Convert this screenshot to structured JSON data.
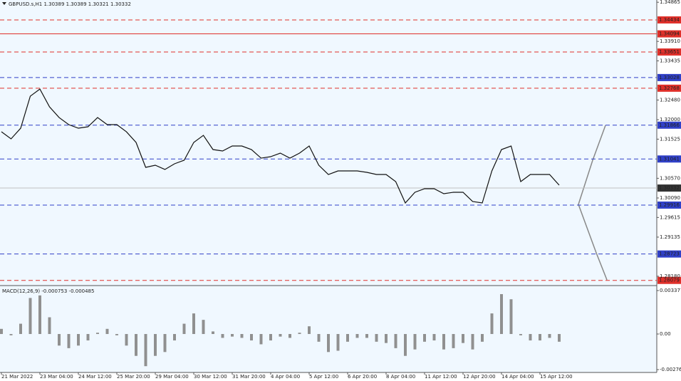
{
  "chart_data": [
    {
      "type": "line",
      "title": "GBPUSD.s,H1  1.30389 1.30389 1.30321 1.30332",
      "categories": [
        "21 Mar 2022",
        null,
        null,
        null,
        "23 Mar 04:00",
        null,
        null,
        null,
        "24 Mar 12:00",
        null,
        null,
        null,
        "25 Mar 20:00",
        null,
        null,
        null,
        "29 Mar 04:00",
        null,
        null,
        null,
        "30 Mar 12:00",
        null,
        null,
        null,
        "31 Mar 20:00",
        null,
        null,
        null,
        "4 Apr 04:00",
        null,
        null,
        null,
        "5 Apr 12:00",
        null,
        null,
        null,
        "6 Apr 20:00",
        null,
        null,
        null,
        "8 Apr 04:00",
        null,
        null,
        null,
        "11 Apr 12:00",
        null,
        null,
        null,
        "12 Apr 20:00",
        null,
        null,
        null,
        "14 Apr 04:00",
        null,
        null,
        null,
        "15 Apr 12:00",
        null,
        null
      ],
      "values": [
        1.31705,
        1.31532,
        1.31792,
        1.32573,
        1.32747,
        1.32313,
        1.32052,
        1.31879,
        1.31792,
        1.31827,
        1.32052,
        1.31879,
        1.31879,
        1.31705,
        1.31445,
        1.30837,
        1.30889,
        1.30785,
        1.30924,
        1.31011,
        1.31445,
        1.31618,
        1.31271,
        1.31236,
        1.31358,
        1.31358,
        1.31271,
        1.31062,
        1.31097,
        1.31184,
        1.31062,
        1.31184,
        1.31358,
        1.30889,
        1.30663,
        1.3075,
        1.3075,
        1.3075,
        1.30715,
        1.30663,
        1.30663,
        1.30489,
        1.29968,
        1.30229,
        1.30316,
        1.30316,
        1.30194,
        1.30229,
        1.30229,
        1.30003,
        1.29968,
        1.3075,
        1.31271,
        1.31358,
        1.30489,
        1.30663,
        1.30663,
        1.30663,
        1.30402
      ],
      "color": "#111111",
      "ylim": [
        1.2797,
        1.3492
      ],
      "yticks": [
        {
          "value": 1.34865,
          "label": "1.34865"
        },
        {
          "value": 1.3391,
          "label": "1.33910"
        },
        {
          "value": 1.33435,
          "label": "1.33435"
        },
        {
          "value": 1.3248,
          "label": "1.32480"
        },
        {
          "value": 1.32,
          "label": "1.32000"
        },
        {
          "value": 1.31525,
          "label": "1.31525"
        },
        {
          "value": 1.3057,
          "label": "1.30570"
        },
        {
          "value": 1.3009,
          "label": "1.30090"
        },
        {
          "value": 1.29615,
          "label": "1.29615"
        },
        {
          "value": 1.29135,
          "label": "1.29135"
        },
        {
          "value": 1.2818,
          "label": "1.28180"
        }
      ],
      "levels": [
        {
          "value": 1.34434,
          "color": "#e0302a",
          "style": "dash"
        },
        {
          "value": 1.34094,
          "color": "#e0302a",
          "style": "solid"
        },
        {
          "value": 1.33651,
          "color": "#e0302a",
          "style": "dash"
        },
        {
          "value": 1.33028,
          "color": "#3040c8",
          "style": "dash"
        },
        {
          "value": 1.32768,
          "color": "#e0302a",
          "style": "dash"
        },
        {
          "value": 1.31866,
          "color": "#3040c8",
          "style": "dash"
        },
        {
          "value": 1.31041,
          "color": "#3040c8",
          "style": "dash"
        },
        {
          "value": 1.30332,
          "color": "#333333",
          "style": "solid"
        },
        {
          "value": 1.29916,
          "color": "#3040c8",
          "style": "dash"
        },
        {
          "value": 1.28723,
          "color": "#3040c8",
          "style": "dash"
        },
        {
          "value": 1.28079,
          "color": "#e0302a",
          "style": "dash"
        }
      ]
    },
    {
      "type": "bar",
      "title": "MACD(12,26,9) -0.000753 -0.000485",
      "values": [
        0.0004,
        -0.0001,
        0.0008,
        0.0028,
        0.003,
        0.0013,
        -0.0009,
        -0.0011,
        -0.0009,
        -0.0005,
        0.0001,
        0.0004,
        -0.0001,
        -0.0009,
        -0.0017,
        -0.0025,
        -0.0017,
        -0.0014,
        -0.0005,
        0.0008,
        0.0016,
        0.0011,
        0.0002,
        -0.0003,
        -0.0002,
        -0.0003,
        -0.0005,
        -0.0008,
        -0.0005,
        -0.0002,
        -0.0003,
        0.0001,
        0.0006,
        -0.0006,
        -0.0014,
        -0.0013,
        -0.0006,
        -0.0003,
        -0.0003,
        -0.0006,
        -0.0007,
        -0.0011,
        -0.0017,
        -0.0012,
        -0.0006,
        -0.0005,
        -0.0012,
        -0.0011,
        -0.0007,
        -0.0012,
        -0.0006,
        0.0016,
        0.0031,
        0.0027,
        -0.0001,
        -0.0005,
        -0.0005,
        -0.0003,
        -0.0006
      ],
      "color": "#909090",
      "ylim": [
        -0.002988,
        0.003598
      ],
      "yticks": [
        {
          "value": 0.003377,
          "label": "0.003377"
        },
        {
          "value": 0,
          "label": "0.00"
        },
        {
          "value": -0.002767,
          "label": "-0.002767"
        }
      ]
    }
  ]
}
